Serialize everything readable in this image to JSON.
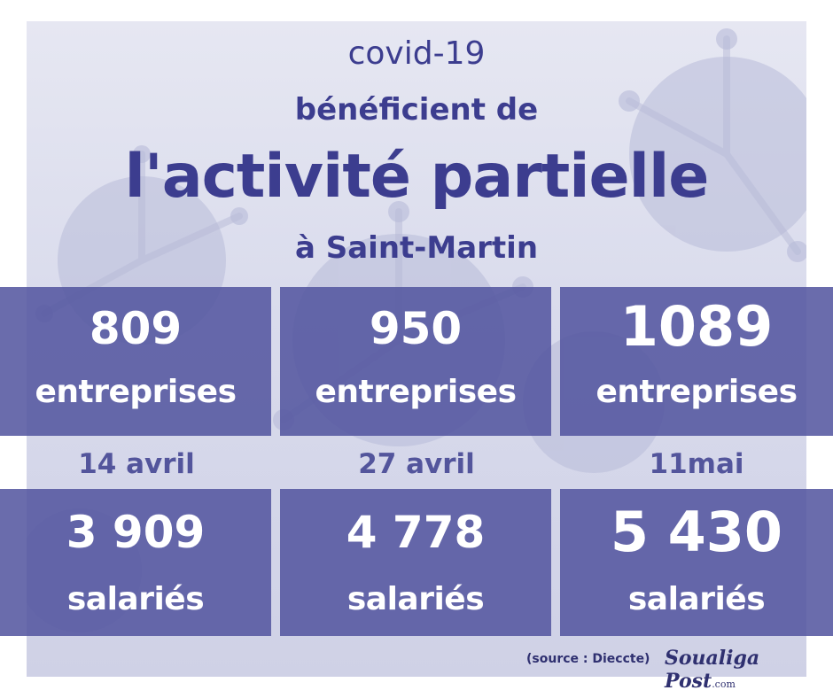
{
  "header": {
    "line1": "covid-19",
    "line2": "bénéficient de",
    "line3": "l'activité partielle",
    "line4": "à Saint-Martin"
  },
  "companies": [
    {
      "value": "809",
      "unit": "entreprises"
    },
    {
      "value": "950",
      "unit": "entreprises"
    },
    {
      "value": "1089",
      "unit": "entreprises"
    }
  ],
  "dates": [
    "14 avril",
    "27 avril",
    "11mai"
  ],
  "employees": [
    {
      "value": "3 909",
      "unit": "salariés"
    },
    {
      "value": "4 778",
      "unit": "salariés"
    },
    {
      "value": "5 430",
      "unit": "salariés"
    }
  ],
  "footer": {
    "source": "(source : Dieccte)",
    "logo_main": "Soualiga Post",
    "logo_domain": ".com"
  },
  "colors": {
    "title_text": "#3c3d8f",
    "box_fill": "#52549e",
    "background": "#d9dbec"
  }
}
